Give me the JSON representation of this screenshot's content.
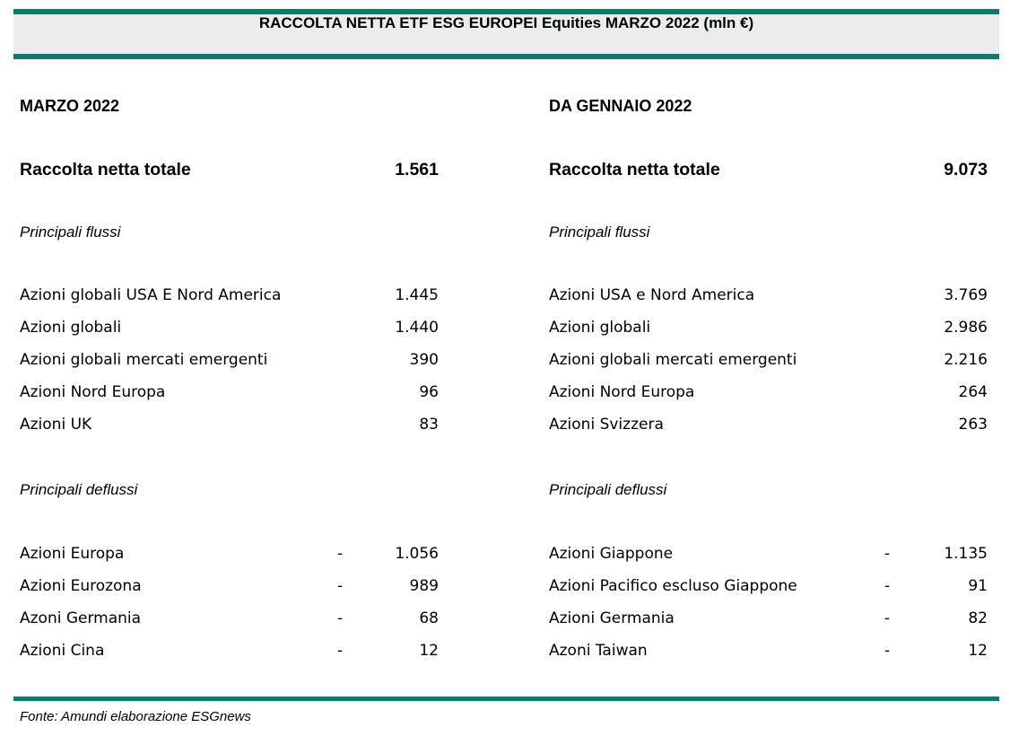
{
  "title": "RACCOLTA NETTA ETF ESG EUROPEI Equities MARZO 2022 (mln €)",
  "left": {
    "section": "MARZO 2022",
    "total_label": "Raccolta netta totale",
    "total_value": "1.561",
    "inflows_label": "Principali flussi",
    "inflows": [
      {
        "label": "Azioni globali USA E Nord America",
        "value": "1.445"
      },
      {
        "label": "Azioni globali",
        "value": "1.440"
      },
      {
        "label": "Azioni globali mercati emergenti",
        "value": "390"
      },
      {
        "label": "Azioni Nord Europa",
        "value": "96"
      },
      {
        "label": "Azioni UK",
        "value": "83"
      }
    ],
    "outflows_label": "Principali deflussi",
    "outflows": [
      {
        "label": "Azioni Europa",
        "sign": "-",
        "value": "1.056"
      },
      {
        "label": "Azioni Eurozona",
        "sign": "-",
        "value": "989"
      },
      {
        "label": "Azoni Germania",
        "sign": "-",
        "value": "68"
      },
      {
        "label": "Azioni Cina",
        "sign": "-",
        "value": "12"
      }
    ]
  },
  "right": {
    "section": "DA GENNAIO 2022",
    "total_label": "Raccolta netta totale",
    "total_value": "9.073",
    "inflows_label": "Principali flussi",
    "inflows": [
      {
        "label": "Azioni USA e Nord America",
        "value": "3.769"
      },
      {
        "label": "Azioni globali",
        "value": "2.986"
      },
      {
        "label": "Azioni globali mercati emergenti",
        "value": "2.216"
      },
      {
        "label": "Azioni Nord Europa",
        "value": "264"
      },
      {
        "label": "Azioni Svizzera",
        "value": "263"
      }
    ],
    "outflows_label": "Principali deflussi",
    "outflows": [
      {
        "label": "Azioni Giappone",
        "sign": "-",
        "value": "1.135"
      },
      {
        "label": "Azioni Pacifico escluso Giappone",
        "sign": "-",
        "value": "91"
      },
      {
        "label": "Azioni Germania",
        "sign": "-",
        "value": "82"
      },
      {
        "label": "Azoni Taiwan",
        "sign": "-",
        "value": "12"
      }
    ]
  },
  "footer": "Fonte: Amundi elaborazione ESGnews",
  "colors": {
    "accent": "#117870",
    "band": "#ececec"
  }
}
